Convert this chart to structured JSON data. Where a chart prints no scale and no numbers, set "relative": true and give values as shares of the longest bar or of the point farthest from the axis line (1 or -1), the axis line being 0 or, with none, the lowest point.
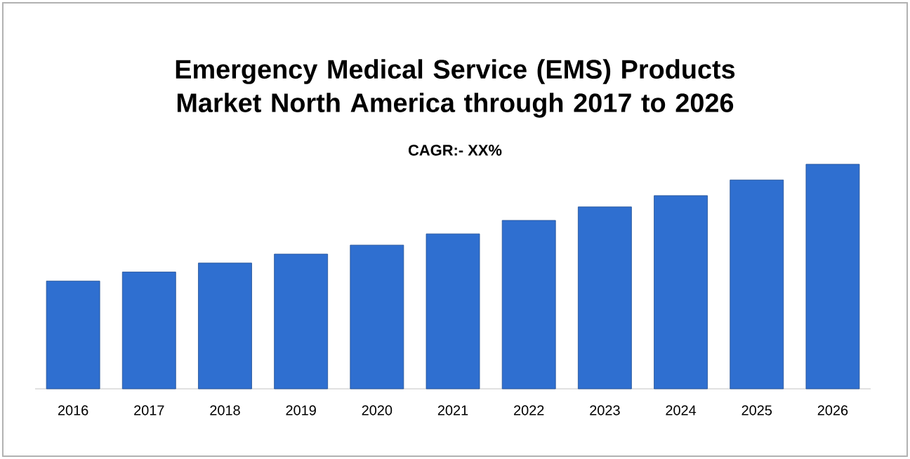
{
  "chart_data": {
    "type": "bar",
    "title": "Emergency Medical Service (EMS) Products Market North America through 2017 to 2026",
    "subtitle": "CAGR:- XX%",
    "categories": [
      "2016",
      "2017",
      "2018",
      "2019",
      "2020",
      "2021",
      "2022",
      "2023",
      "2024",
      "2025",
      "2026"
    ],
    "values": [
      0.48,
      0.52,
      0.56,
      0.6,
      0.64,
      0.69,
      0.75,
      0.81,
      0.86,
      0.93,
      1
    ],
    "color": "#2f6fd0",
    "relative": true
  }
}
